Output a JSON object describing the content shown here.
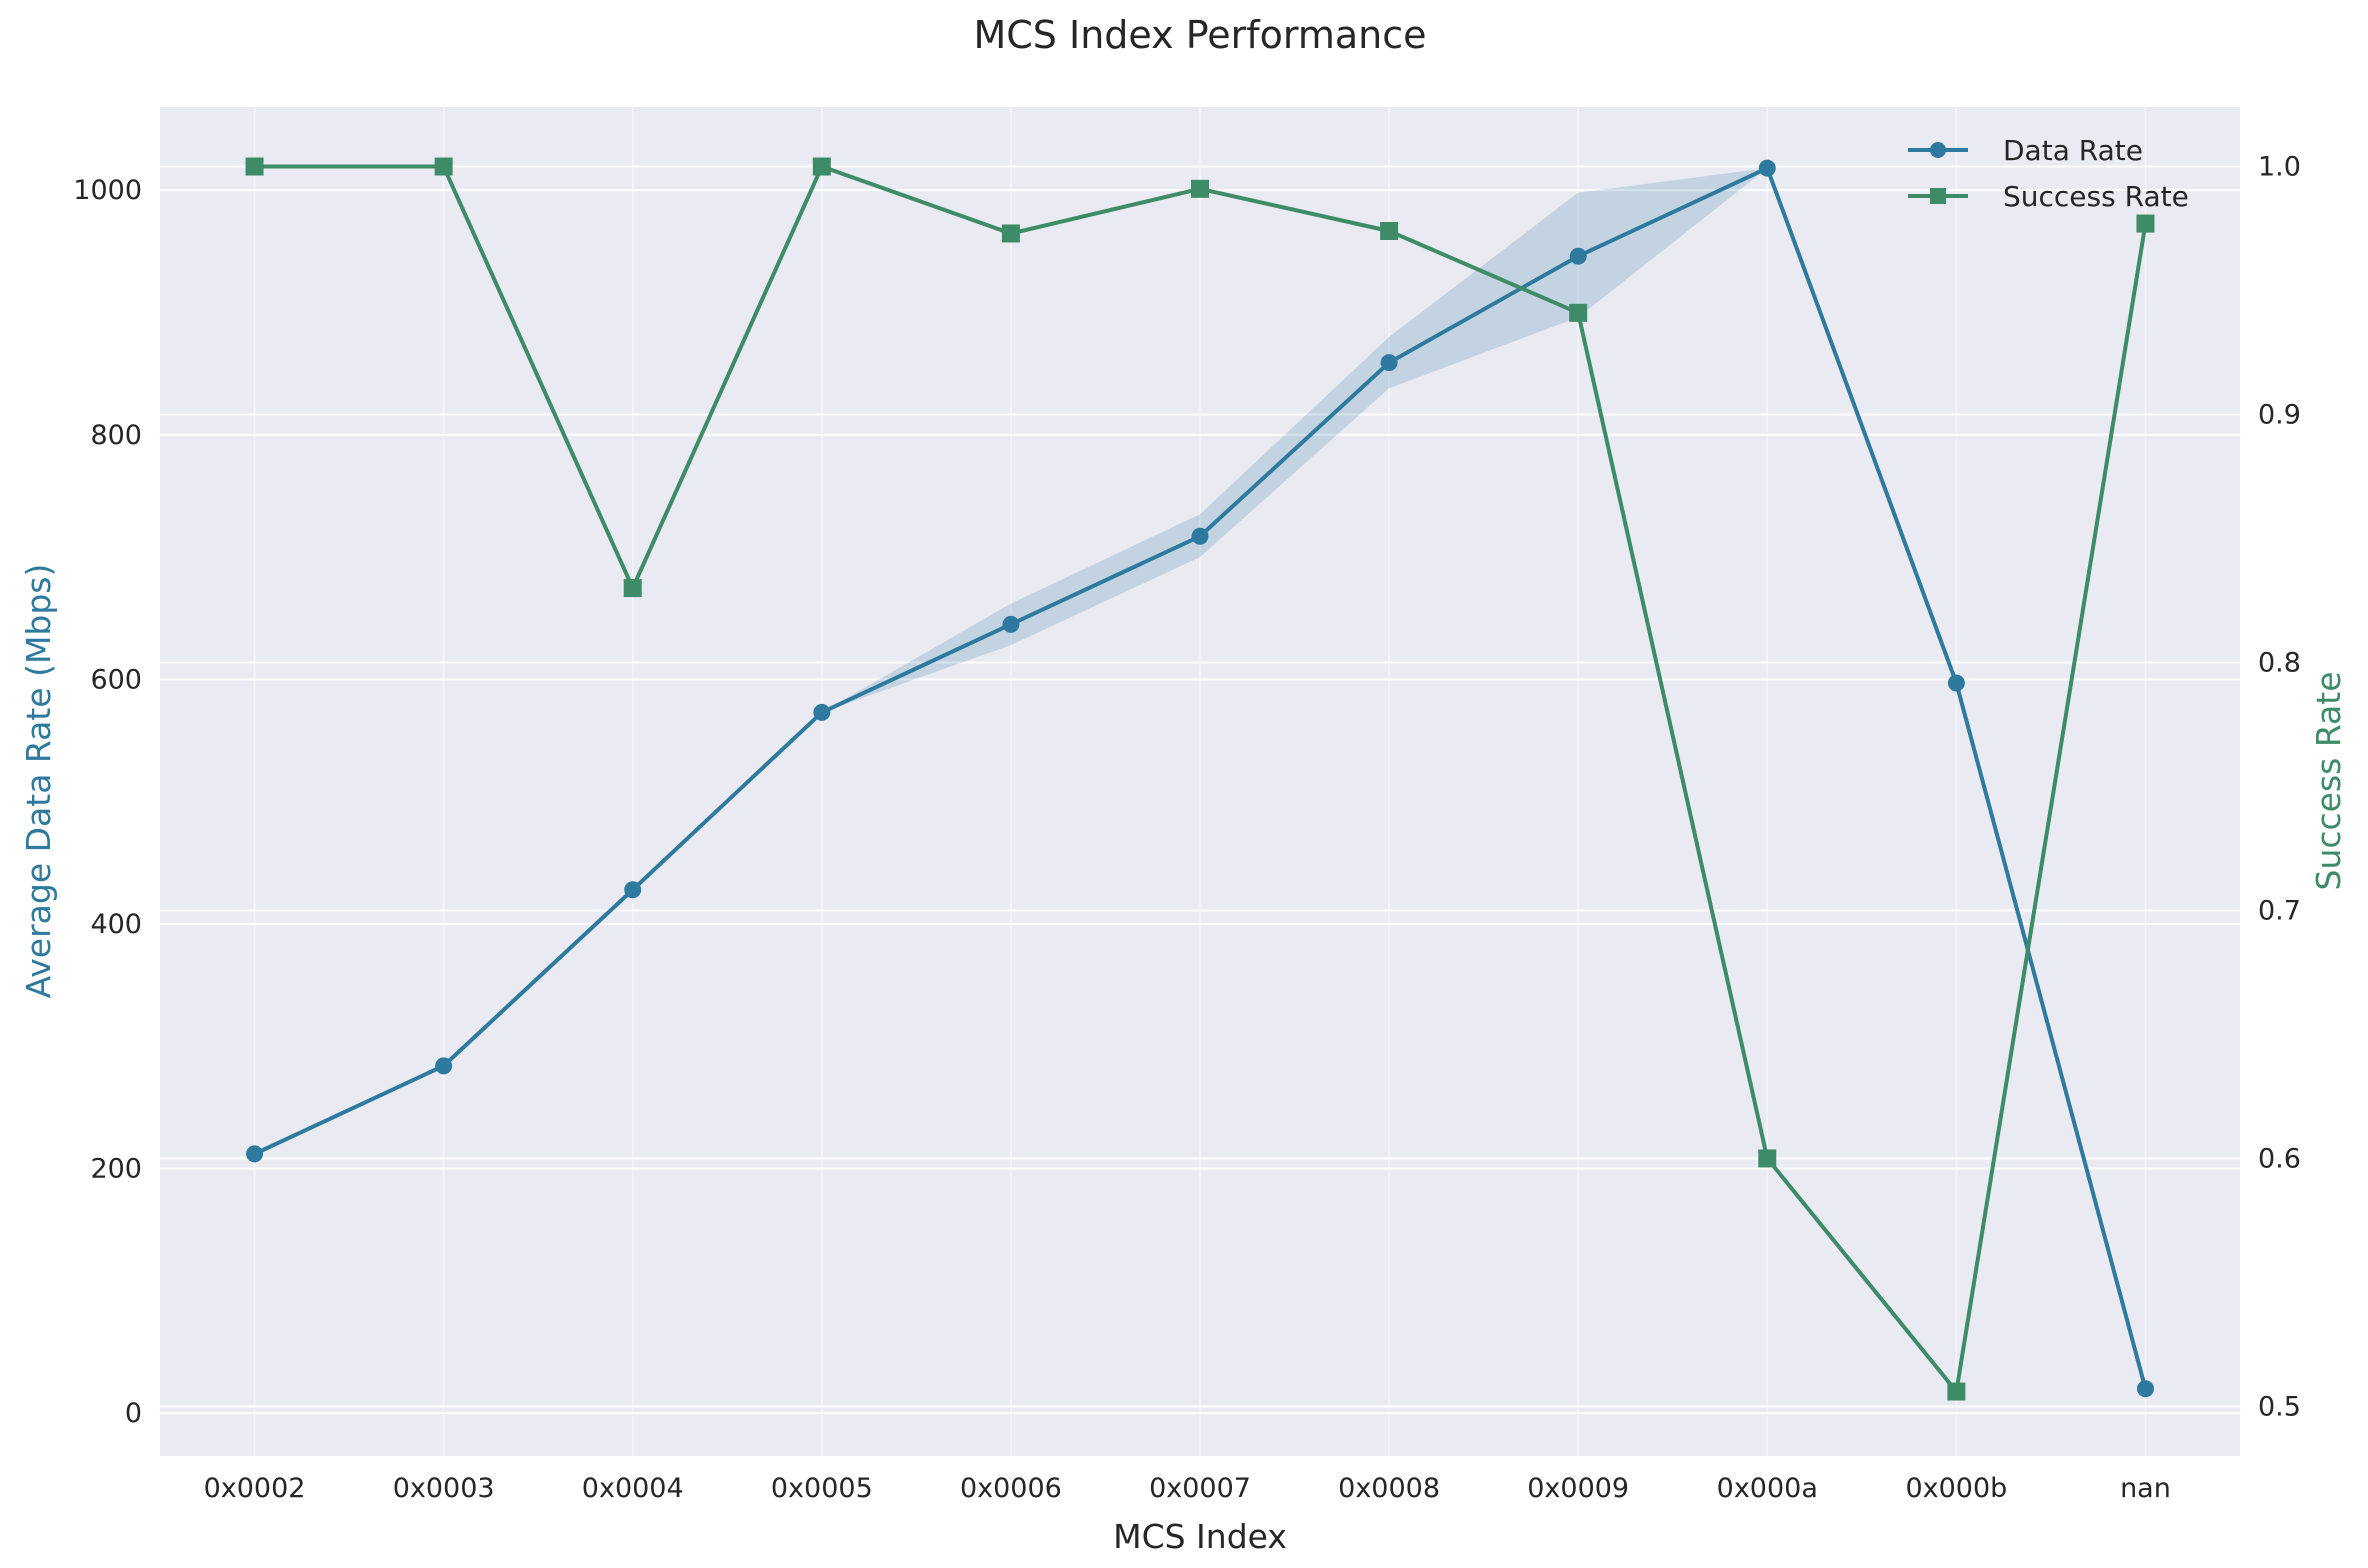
{
  "chart_data": {
    "type": "line",
    "title": "MCS Index Performance",
    "xlabel": "MCS Index",
    "ylabel": "Average Data Rate (Mbps)",
    "y2label": "Success Rate",
    "categories": [
      "0x0002",
      "0x0003",
      "0x0004",
      "0x0005",
      "0x0006",
      "0x0007",
      "0x0008",
      "0x0009",
      "0x000a",
      "0x000b",
      "nan"
    ],
    "ylim": [
      -35,
      1068
    ],
    "y2lim": [
      0.48,
      1.024
    ],
    "yticks": [
      0,
      200,
      400,
      600,
      800,
      1000
    ],
    "y2ticks": [
      0.5,
      0.6,
      0.7,
      0.8,
      0.9,
      1.0
    ],
    "y2tick_labels": [
      "0.5",
      "0.6",
      "0.7",
      "0.8",
      "0.9",
      "1.0"
    ],
    "grid": true,
    "legend_position": "top-right",
    "series": [
      {
        "name": "Data Rate",
        "axis": "left",
        "marker": "circle",
        "color": "#2e7a9e",
        "values": [
          212,
          284,
          428,
          573,
          645,
          717,
          859,
          946,
          1018,
          597,
          20
        ],
        "band_lower": [
          212,
          284,
          428,
          573,
          628,
          700,
          838,
          896,
          1018,
          597,
          20
        ],
        "band_upper": [
          212,
          284,
          428,
          573,
          662,
          735,
          880,
          998,
          1018,
          597,
          20
        ]
      },
      {
        "name": "Success Rate",
        "axis": "right",
        "marker": "square",
        "color": "#3d8c67",
        "values": [
          1.0,
          1.0,
          0.83,
          1.0,
          0.973,
          0.991,
          0.974,
          0.941,
          0.6,
          0.506,
          0.977
        ]
      }
    ],
    "colors": {
      "plot_background": "#eaeaf2",
      "grid": "#ffffff",
      "band_fill": "#2e7a9e",
      "left_axis_title": "#2e7a9e",
      "right_axis_title": "#3d8c67"
    }
  }
}
